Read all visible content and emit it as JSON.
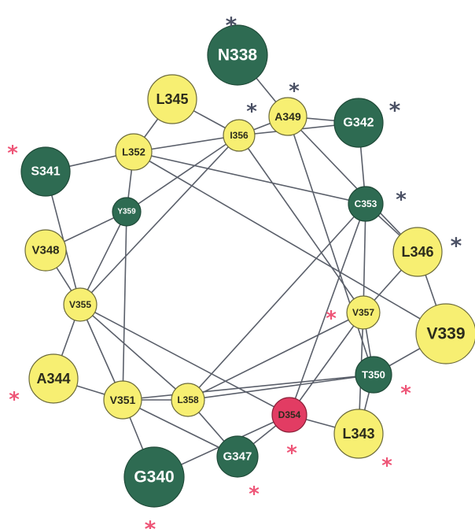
{
  "colors": {
    "hydrophobic_fill": "#f7ef72",
    "hydrophobic_stroke": "#6b6a3a",
    "polar_fill": "#2e6b52",
    "polar_stroke": "#1f4a38",
    "charged_fill": "#e23c63",
    "edge": "#5a5f6a",
    "label_on_yellow": "#2b2b1c",
    "label_on_green": "#ffffff",
    "asterisk_gray": "#4a5064",
    "asterisk_pink": "#ee5577"
  },
  "residues": [
    {
      "id": "N338",
      "label": "N338",
      "kind": "polar"
    },
    {
      "id": "V339",
      "label": "V339",
      "kind": "hydrophobic"
    },
    {
      "id": "G340",
      "label": "G340",
      "kind": "polar"
    },
    {
      "id": "S341",
      "label": "S341",
      "kind": "polar"
    },
    {
      "id": "G342",
      "label": "G342",
      "kind": "polar"
    },
    {
      "id": "L343",
      "label": "L343",
      "kind": "hydrophobic"
    },
    {
      "id": "A344",
      "label": "A344",
      "kind": "hydrophobic"
    },
    {
      "id": "L345",
      "label": "L345",
      "kind": "hydrophobic"
    },
    {
      "id": "L346",
      "label": "L346",
      "kind": "hydrophobic"
    },
    {
      "id": "G347",
      "label": "G347",
      "kind": "polar"
    },
    {
      "id": "V348",
      "label": "V348",
      "kind": "hydrophobic"
    },
    {
      "id": "A349",
      "label": "A349",
      "kind": "hydrophobic"
    },
    {
      "id": "T350",
      "label": "T350",
      "kind": "polar"
    },
    {
      "id": "V351",
      "label": "V351",
      "kind": "hydrophobic"
    },
    {
      "id": "L352",
      "label": "L352",
      "kind": "hydrophobic"
    },
    {
      "id": "C353",
      "label": "C353",
      "kind": "polar"
    },
    {
      "id": "D354",
      "label": "D354",
      "kind": "charged"
    },
    {
      "id": "V355",
      "label": "V355",
      "kind": "hydrophobic"
    },
    {
      "id": "I356",
      "label": "I356",
      "kind": "hydrophobic"
    },
    {
      "id": "V357",
      "label": "V357",
      "kind": "hydrophobic"
    },
    {
      "id": "L358",
      "label": "L358",
      "kind": "hydrophobic"
    },
    {
      "id": "Y359",
      "label": "Y359",
      "kind": "polar"
    }
  ],
  "edges": [
    [
      "N338",
      "A349"
    ],
    [
      "A349",
      "G342"
    ],
    [
      "A349",
      "T350"
    ],
    [
      "A349",
      "L346"
    ],
    [
      "V339",
      "L346"
    ],
    [
      "V339",
      "L352"
    ],
    [
      "V339",
      "T350"
    ],
    [
      "G340",
      "V351"
    ],
    [
      "G340",
      "D354"
    ],
    [
      "S341",
      "L352"
    ],
    [
      "S341",
      "V355"
    ],
    [
      "G342",
      "C353"
    ],
    [
      "G342",
      "I356"
    ],
    [
      "L343",
      "D354"
    ],
    [
      "L343",
      "T350"
    ],
    [
      "L343",
      "V357"
    ],
    [
      "A344",
      "V351"
    ],
    [
      "A344",
      "V355"
    ],
    [
      "L345",
      "I356"
    ],
    [
      "L345",
      "L352"
    ],
    [
      "L346",
      "C353"
    ],
    [
      "L346",
      "V357"
    ],
    [
      "G347",
      "D354"
    ],
    [
      "G347",
      "L358"
    ],
    [
      "G347",
      "V351"
    ],
    [
      "V348",
      "V355"
    ],
    [
      "V348",
      "Y359"
    ],
    [
      "T350",
      "V351"
    ],
    [
      "T350",
      "L358"
    ],
    [
      "V351",
      "L358"
    ],
    [
      "V351",
      "Y359"
    ],
    [
      "V351",
      "V355"
    ],
    [
      "L352",
      "Y359"
    ],
    [
      "L352",
      "C353"
    ],
    [
      "L352",
      "I356"
    ],
    [
      "C353",
      "D354"
    ],
    [
      "C353",
      "L358"
    ],
    [
      "C353",
      "V357"
    ],
    [
      "D354",
      "V355"
    ],
    [
      "D354",
      "V357"
    ],
    [
      "V355",
      "L358"
    ],
    [
      "V355",
      "I356"
    ],
    [
      "V355",
      "Y359"
    ],
    [
      "I356",
      "V357"
    ],
    [
      "I356",
      "Y359"
    ],
    [
      "I356",
      "A349"
    ],
    [
      "V357",
      "L358"
    ],
    [
      "V357",
      "T350"
    ]
  ],
  "asterisks": [
    {
      "for": "N338",
      "color": "gray"
    },
    {
      "for": "A349",
      "color": "gray"
    },
    {
      "for": "I356",
      "color": "gray"
    },
    {
      "for": "G342",
      "color": "gray"
    },
    {
      "for": "C353",
      "color": "gray"
    },
    {
      "for": "L346",
      "color": "gray"
    },
    {
      "for": "S341",
      "color": "pink"
    },
    {
      "for": "V357",
      "color": "pink"
    },
    {
      "for": "T350",
      "color": "pink"
    },
    {
      "for": "A344",
      "color": "pink"
    },
    {
      "for": "L343",
      "color": "pink"
    },
    {
      "for": "D354",
      "color": "pink"
    },
    {
      "for": "G347",
      "color": "pink"
    },
    {
      "for": "G340",
      "color": "pink"
    }
  ],
  "asterisk_glyph": "*"
}
